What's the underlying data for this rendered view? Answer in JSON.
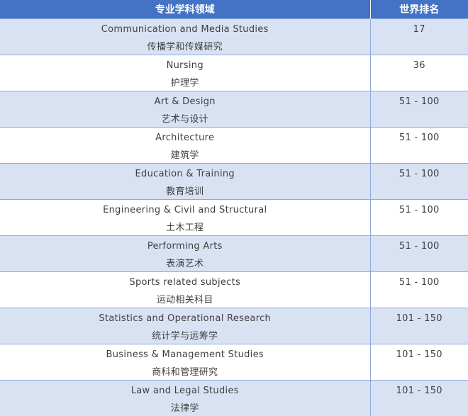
{
  "table": {
    "headers": {
      "subject": "专业学科领域",
      "rank": "世界排名"
    },
    "rows": [
      {
        "en": "Communication and Media Studies",
        "zh": "传播学和传媒研究",
        "rank": "17"
      },
      {
        "en": "Nursing",
        "zh": "护理学",
        "rank": "36"
      },
      {
        "en": "Art & Design",
        "zh": "艺术与设计",
        "rank": "51 - 100"
      },
      {
        "en": "Architecture",
        "zh": "建筑学",
        "rank": "51 - 100"
      },
      {
        "en": "Education & Training",
        "zh": "教育培训",
        "rank": "51 - 100"
      },
      {
        "en": "Engineering & Civil and Structural",
        "zh": "土木工程",
        "rank": "51 - 100"
      },
      {
        "en": "Performing Arts",
        "zh": "表演艺术",
        "rank": "51 - 100"
      },
      {
        "en": "Sports related subjects",
        "zh": "运动相关科目",
        "rank": "51 - 100"
      },
      {
        "en": "Statistics and Operational Research",
        "zh": "统计学与运筹学",
        "rank": "101 - 150"
      },
      {
        "en": "Business & Management Studies",
        "zh": "商科和管理研究",
        "rank": "101 - 150"
      },
      {
        "en": "Law and Legal Studies",
        "zh": "法律学",
        "rank": "101 - 150"
      }
    ]
  },
  "colors": {
    "header_bg": "#4472c4",
    "band_bg": "#d9e2f3",
    "grid_line": "#8eaadb",
    "text": "#404040"
  }
}
